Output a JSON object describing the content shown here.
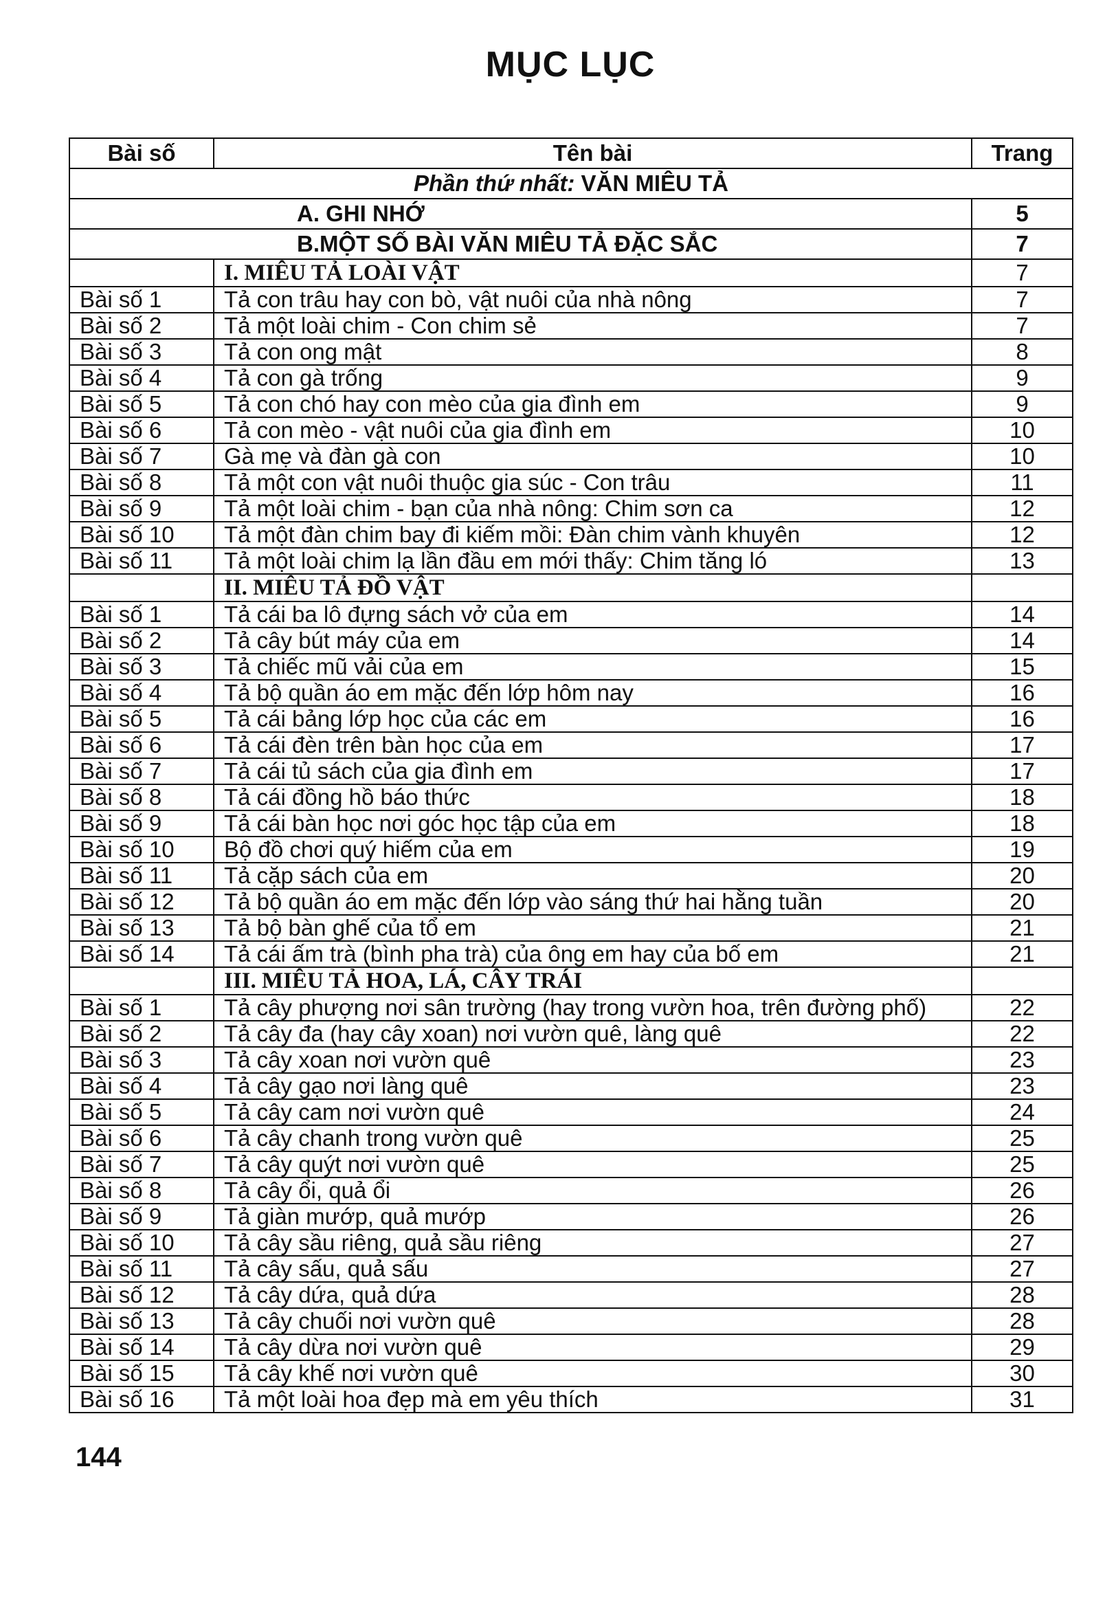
{
  "title": "MỤC LỤC",
  "header": {
    "col1": "Bài số",
    "col2": "Tên bài",
    "col3": "Trang"
  },
  "part": {
    "prefix": "Phần thứ nhất:",
    "title": "VĂN MIÊU TẢ"
  },
  "rows": [
    {
      "type": "big",
      "name": "A. GHI NHỚ",
      "page": "5"
    },
    {
      "type": "big",
      "name": "B.MỘT SỐ BÀI VĂN MIÊU TẢ ĐẶC SẮC",
      "page": "7"
    },
    {
      "type": "sec",
      "num": "",
      "name": "I. MIÊU TẢ LOÀI VẬT",
      "page": "7"
    },
    {
      "type": "item",
      "num": "Bài số 1",
      "name": "Tả con trâu hay con bò, vật nuôi của nhà nông",
      "page": "7"
    },
    {
      "type": "item",
      "num": "Bài số 2",
      "name": "Tả một loài chim - Con chim sẻ",
      "page": "7"
    },
    {
      "type": "item",
      "num": "Bài số 3",
      "name": "Tả con ong mật",
      "page": "8"
    },
    {
      "type": "item",
      "num": "Bài số 4",
      "name": "Tả con gà trống",
      "page": "9"
    },
    {
      "type": "item",
      "num": "Bài số 5",
      "name": "Tả con chó hay con mèo của gia đình em",
      "page": "9"
    },
    {
      "type": "item",
      "num": "Bài số 6",
      "name": "Tả con mèo - vật nuôi của gia đình em",
      "page": "10"
    },
    {
      "type": "item",
      "num": "Bài số 7",
      "name": "Gà mẹ và đàn gà con",
      "page": "10"
    },
    {
      "type": "item",
      "num": "Bài số 8",
      "name": "Tả một con vật nuôi thuộc gia súc - Con trâu",
      "page": "11"
    },
    {
      "type": "item",
      "num": "Bài số 9",
      "name": "Tả một loài chim - bạn của nhà nông: Chim sơn ca",
      "page": "12"
    },
    {
      "type": "item",
      "num": "Bài số 10",
      "name": "Tả một đàn chim bay đi kiếm mồi: Đàn chim vành khuyên",
      "page": "12"
    },
    {
      "type": "item",
      "num": "Bài số 11",
      "name": "Tả một loài chim lạ lần đầu em mới thấy: Chim tăng ló",
      "page": "13"
    },
    {
      "type": "sec",
      "num": "",
      "name": "II. MIÊU TẢ ĐỒ VẬT",
      "page": ""
    },
    {
      "type": "item",
      "num": "Bài số 1",
      "name": "Tả cái ba lô đựng sách vở của em",
      "page": "14"
    },
    {
      "type": "item",
      "num": "Bài số 2",
      "name": "Tả cây bút máy của em",
      "page": "14"
    },
    {
      "type": "item",
      "num": "Bài số 3",
      "name": "Tả chiếc mũ vải của em",
      "page": "15"
    },
    {
      "type": "item",
      "num": "Bài số 4",
      "name": "Tả bộ quần áo em mặc đến lớp hôm nay",
      "page": "16"
    },
    {
      "type": "item",
      "num": "Bài số 5",
      "name": "Tả cái bảng lớp học của các em",
      "page": "16"
    },
    {
      "type": "item",
      "num": "Bài số 6",
      "name": "Tả cái đèn trên bàn học của em",
      "page": "17"
    },
    {
      "type": "item",
      "num": "Bài số 7",
      "name": "Tả cái tủ sách của gia đình em",
      "page": "17"
    },
    {
      "type": "item",
      "num": "Bài số 8",
      "name": "Tả cái đồng hồ báo thức",
      "page": "18"
    },
    {
      "type": "item",
      "num": "Bài số 9",
      "name": "Tả cái bàn học nơi góc học tập của em",
      "page": "18"
    },
    {
      "type": "item",
      "num": "Bài số 10",
      "name": "Bộ đồ chơi quý hiếm của em",
      "page": "19"
    },
    {
      "type": "item",
      "num": "Bài số 11",
      "name": "Tả cặp sách của em",
      "page": "20"
    },
    {
      "type": "item",
      "num": "Bài số 12",
      "name": "Tả bộ quần áo em mặc đến lớp vào sáng thứ hai hằng tuần",
      "page": "20"
    },
    {
      "type": "item",
      "num": "Bài số 13",
      "name": "Tả bộ bàn ghế của tổ em",
      "page": "21"
    },
    {
      "type": "item",
      "num": "Bài số 14",
      "name": "Tả cái ấm trà (bình pha trà) của ông em hay của bố em",
      "page": "21"
    },
    {
      "type": "sec",
      "num": "",
      "name": "III. MIÊU TẢ HOA, LÁ, CÂY TRÁI",
      "page": ""
    },
    {
      "type": "item",
      "num": "Bài số 1",
      "name": "Tả cây phượng nơi sân trường (hay trong vườn hoa, trên đường phố)",
      "page": "22"
    },
    {
      "type": "item",
      "num": "Bài số 2",
      "name": "Tả cây đa (hay cây xoan) nơi vườn quê, làng quê",
      "page": "22"
    },
    {
      "type": "item",
      "num": "Bài số 3",
      "name": "Tả cây xoan nơi vườn quê",
      "page": "23"
    },
    {
      "type": "item",
      "num": "Bài số 4",
      "name": "Tả cây gạo nơi làng quê",
      "page": "23"
    },
    {
      "type": "item",
      "num": "Bài số 5",
      "name": "Tả cây cam nơi vườn quê",
      "page": "24"
    },
    {
      "type": "item",
      "num": "Bài số 6",
      "name": "Tả cây chanh trong vườn quê",
      "page": "25"
    },
    {
      "type": "item",
      "num": "Bài số 7",
      "name": "Tả cây quýt nơi vườn quê",
      "page": "25"
    },
    {
      "type": "item",
      "num": "Bài số 8",
      "name": "Tả cây ổi, quả ổi",
      "page": "26"
    },
    {
      "type": "item",
      "num": "Bài số 9",
      "name": "Tả giàn mướp, quả mướp",
      "page": "26"
    },
    {
      "type": "item",
      "num": "Bài số 10",
      "name": "Tả cây sầu riêng, quả sầu riêng",
      "page": "27"
    },
    {
      "type": "item",
      "num": "Bài số 11",
      "name": "Tả cây sấu, quả sấu",
      "page": "27"
    },
    {
      "type": "item",
      "num": "Bài số 12",
      "name": "Tả cây dứa, quả dứa",
      "page": "28"
    },
    {
      "type": "item",
      "num": "Bài số 13",
      "name": "Tả cây chuối nơi vườn quê",
      "page": "28"
    },
    {
      "type": "item",
      "num": "Bài số 14",
      "name": "Tả cây dừa nơi vườn quê",
      "page": "29"
    },
    {
      "type": "item",
      "num": "Bài số 15",
      "name": "Tả cây khế nơi vườn quê",
      "page": "30"
    },
    {
      "type": "item",
      "num": "Bài số 16",
      "name": "Tả một loài hoa đẹp mà em yêu thích",
      "page": "31"
    }
  ],
  "page_number": "144"
}
